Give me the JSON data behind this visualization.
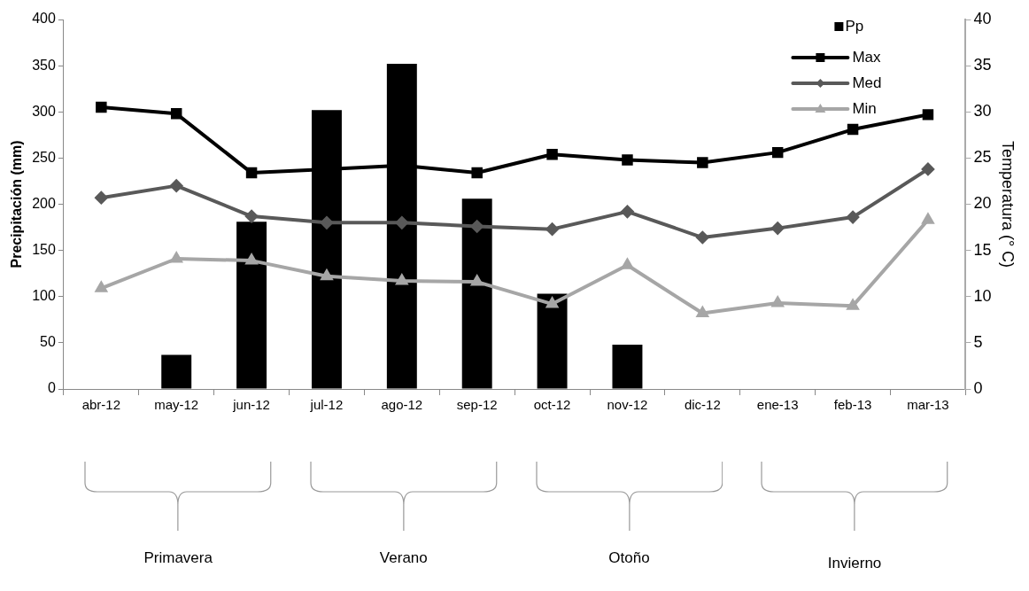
{
  "chart_data": {
    "type": "bar",
    "categories": [
      "abr-12",
      "may-12",
      "jun-12",
      "jul-12",
      "ago-12",
      "sep-12",
      "oct-12",
      "nov-12",
      "dic-12",
      "ene-13",
      "feb-13",
      "mar-13"
    ],
    "ylabel": "Precipitación (mm)",
    "y2label": "Temperatura (° C)",
    "ylim": [
      0,
      400
    ],
    "yticks": [
      0,
      50,
      100,
      150,
      200,
      250,
      300,
      350,
      400
    ],
    "y2lim": [
      0,
      40
    ],
    "y2ticks": [
      0,
      5,
      10,
      15,
      20,
      25,
      30,
      35,
      40
    ],
    "series": [
      {
        "name": "Pp",
        "color": "#000000",
        "values": [
          0,
          37,
          181,
          302,
          352,
          206,
          103,
          48,
          0,
          0,
          0,
          0
        ]
      },
      {
        "name": "Max",
        "type": "line",
        "axis": "y2",
        "marker": "square",
        "color": "#000000",
        "values": [
          30.5,
          29.8,
          23.4,
          23.8,
          24.2,
          23.4,
          25.4,
          24.8,
          24.5,
          25.6,
          28.1,
          29.7
        ]
      },
      {
        "name": "Med",
        "type": "line",
        "axis": "y2",
        "marker": "diamond",
        "color": "#595959",
        "values": [
          20.7,
          22.0,
          18.7,
          18.0,
          18.0,
          17.6,
          17.3,
          19.2,
          16.4,
          17.4,
          18.6,
          23.8
        ]
      },
      {
        "name": "Min",
        "type": "line",
        "axis": "y2",
        "marker": "triangle",
        "color": "#a6a6a6",
        "values": [
          10.9,
          14.1,
          13.9,
          12.2,
          11.7,
          11.6,
          9.2,
          13.4,
          8.2,
          9.3,
          9.0,
          18.3
        ]
      }
    ],
    "legend": "top right",
    "grid": false,
    "annotations": [
      "Primavera",
      "Verano",
      "Otoño",
      "Invierno"
    ]
  }
}
